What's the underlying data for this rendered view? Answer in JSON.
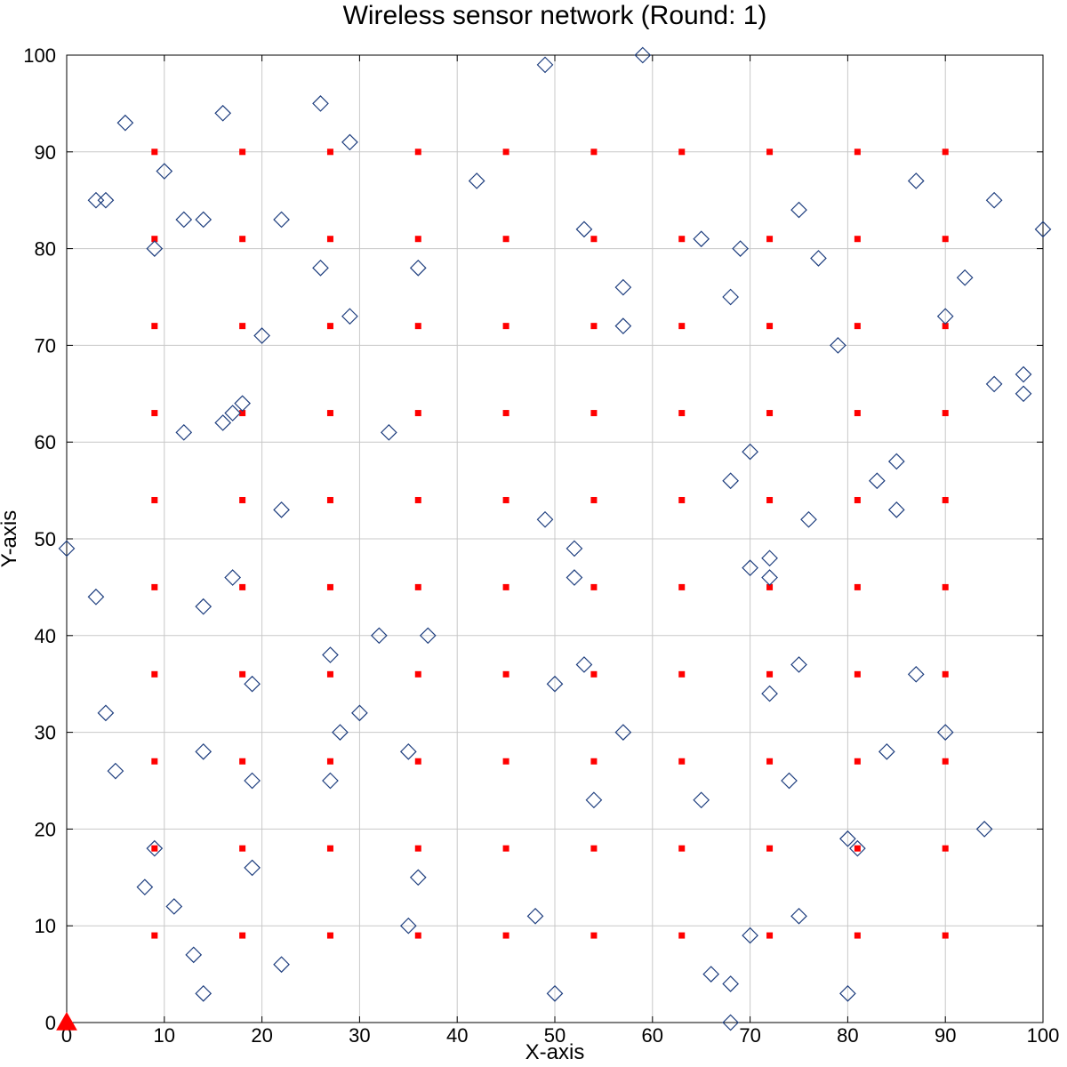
{
  "chart_data": {
    "type": "scatter",
    "title": "Wireless sensor network (Round: 1)",
    "xlabel": "X-axis",
    "ylabel": "Y-axis",
    "xlim": [
      0,
      100
    ],
    "ylim": [
      0,
      100
    ],
    "x_ticks": [
      "0",
      "10",
      "20",
      "30",
      "40",
      "50",
      "60",
      "70",
      "80",
      "90",
      "100"
    ],
    "y_ticks": [
      "0",
      "10",
      "20",
      "30",
      "40",
      "50",
      "60",
      "70",
      "80",
      "90",
      "100"
    ],
    "grid": true,
    "legend": "none",
    "series": [
      {
        "marker": "square",
        "color": "#ff0000",
        "points": [
          [
            9,
            9
          ],
          [
            9,
            18
          ],
          [
            9,
            27
          ],
          [
            9,
            36
          ],
          [
            9,
            45
          ],
          [
            9,
            54
          ],
          [
            9,
            63
          ],
          [
            9,
            72
          ],
          [
            9,
            81
          ],
          [
            9,
            90
          ],
          [
            18,
            9
          ],
          [
            18,
            18
          ],
          [
            18,
            27
          ],
          [
            18,
            36
          ],
          [
            18,
            45
          ],
          [
            18,
            54
          ],
          [
            18,
            63
          ],
          [
            18,
            72
          ],
          [
            18,
            81
          ],
          [
            18,
            90
          ],
          [
            27,
            9
          ],
          [
            27,
            18
          ],
          [
            27,
            27
          ],
          [
            27,
            36
          ],
          [
            27,
            45
          ],
          [
            27,
            54
          ],
          [
            27,
            63
          ],
          [
            27,
            72
          ],
          [
            27,
            81
          ],
          [
            27,
            90
          ],
          [
            36,
            9
          ],
          [
            36,
            18
          ],
          [
            36,
            27
          ],
          [
            36,
            36
          ],
          [
            36,
            45
          ],
          [
            36,
            54
          ],
          [
            36,
            63
          ],
          [
            36,
            72
          ],
          [
            36,
            81
          ],
          [
            36,
            90
          ],
          [
            45,
            9
          ],
          [
            45,
            18
          ],
          [
            45,
            27
          ],
          [
            45,
            36
          ],
          [
            45,
            45
          ],
          [
            45,
            54
          ],
          [
            45,
            63
          ],
          [
            45,
            72
          ],
          [
            45,
            81
          ],
          [
            45,
            90
          ],
          [
            54,
            9
          ],
          [
            54,
            18
          ],
          [
            54,
            27
          ],
          [
            54,
            36
          ],
          [
            54,
            45
          ],
          [
            54,
            54
          ],
          [
            54,
            63
          ],
          [
            54,
            72
          ],
          [
            54,
            81
          ],
          [
            54,
            90
          ],
          [
            63,
            9
          ],
          [
            63,
            18
          ],
          [
            63,
            27
          ],
          [
            63,
            36
          ],
          [
            63,
            45
          ],
          [
            63,
            54
          ],
          [
            63,
            63
          ],
          [
            63,
            72
          ],
          [
            63,
            81
          ],
          [
            63,
            90
          ],
          [
            72,
            9
          ],
          [
            72,
            18
          ],
          [
            72,
            27
          ],
          [
            72,
            36
          ],
          [
            72,
            45
          ],
          [
            72,
            54
          ],
          [
            72,
            63
          ],
          [
            72,
            72
          ],
          [
            72,
            81
          ],
          [
            72,
            90
          ],
          [
            81,
            9
          ],
          [
            81,
            18
          ],
          [
            81,
            27
          ],
          [
            81,
            36
          ],
          [
            81,
            45
          ],
          [
            81,
            54
          ],
          [
            81,
            63
          ],
          [
            81,
            72
          ],
          [
            81,
            81
          ],
          [
            81,
            90
          ],
          [
            90,
            9
          ],
          [
            90,
            18
          ],
          [
            90,
            27
          ],
          [
            90,
            36
          ],
          [
            90,
            45
          ],
          [
            90,
            54
          ],
          [
            90,
            63
          ],
          [
            90,
            72
          ],
          [
            90,
            81
          ],
          [
            90,
            90
          ]
        ]
      },
      {
        "marker": "diamond",
        "color": "#1f3f7f",
        "points": [
          [
            0,
            49
          ],
          [
            3,
            85
          ],
          [
            4,
            85
          ],
          [
            6,
            93
          ],
          [
            9,
            80
          ],
          [
            10,
            88
          ],
          [
            12,
            83
          ],
          [
            14,
            83
          ],
          [
            16,
            94
          ],
          [
            22,
            83
          ],
          [
            26,
            95
          ],
          [
            29,
            91
          ],
          [
            26,
            78
          ],
          [
            36,
            78
          ],
          [
            29,
            73
          ],
          [
            20,
            71
          ],
          [
            42,
            87
          ],
          [
            49,
            99
          ],
          [
            59,
            100
          ],
          [
            53,
            82
          ],
          [
            57,
            76
          ],
          [
            57,
            72
          ],
          [
            65,
            81
          ],
          [
            68,
            75
          ],
          [
            69,
            80
          ],
          [
            75,
            84
          ],
          [
            77,
            79
          ],
          [
            79,
            70
          ],
          [
            87,
            87
          ],
          [
            92,
            77
          ],
          [
            90,
            73
          ],
          [
            95,
            85
          ],
          [
            100,
            82
          ],
          [
            98,
            67
          ],
          [
            98,
            65
          ],
          [
            95,
            66
          ],
          [
            85,
            58
          ],
          [
            83,
            56
          ],
          [
            85,
            53
          ],
          [
            76,
            52
          ],
          [
            70,
            59
          ],
          [
            68,
            56
          ],
          [
            72,
            48
          ],
          [
            72,
            46
          ],
          [
            70,
            47
          ],
          [
            52,
            49
          ],
          [
            52,
            46
          ],
          [
            49,
            52
          ],
          [
            33,
            61
          ],
          [
            22,
            53
          ],
          [
            12,
            61
          ],
          [
            16,
            62
          ],
          [
            17,
            63
          ],
          [
            18,
            64
          ],
          [
            3,
            44
          ],
          [
            14,
            43
          ],
          [
            17,
            46
          ],
          [
            32,
            40
          ],
          [
            37,
            40
          ],
          [
            27,
            38
          ],
          [
            19,
            35
          ],
          [
            4,
            32
          ],
          [
            5,
            26
          ],
          [
            14,
            28
          ],
          [
            19,
            25
          ],
          [
            27,
            25
          ],
          [
            28,
            30
          ],
          [
            30,
            32
          ],
          [
            35,
            28
          ],
          [
            53,
            37
          ],
          [
            50,
            35
          ],
          [
            57,
            30
          ],
          [
            54,
            23
          ],
          [
            65,
            23
          ],
          [
            72,
            34
          ],
          [
            75,
            37
          ],
          [
            74,
            25
          ],
          [
            87,
            36
          ],
          [
            84,
            28
          ],
          [
            90,
            30
          ],
          [
            94,
            20
          ],
          [
            80,
            19
          ],
          [
            81,
            18
          ],
          [
            75,
            11
          ],
          [
            70,
            9
          ],
          [
            80,
            3
          ],
          [
            68,
            4
          ],
          [
            68,
            0
          ],
          [
            66,
            5
          ],
          [
            50,
            3
          ],
          [
            48,
            11
          ],
          [
            35,
            10
          ],
          [
            36,
            15
          ],
          [
            22,
            6
          ],
          [
            19,
            16
          ],
          [
            14,
            3
          ],
          [
            13,
            7
          ],
          [
            11,
            12
          ],
          [
            8,
            14
          ],
          [
            9,
            18
          ]
        ]
      },
      {
        "marker": "triangle",
        "color": "#ff0000",
        "points": [
          [
            0,
            0
          ]
        ]
      }
    ]
  }
}
